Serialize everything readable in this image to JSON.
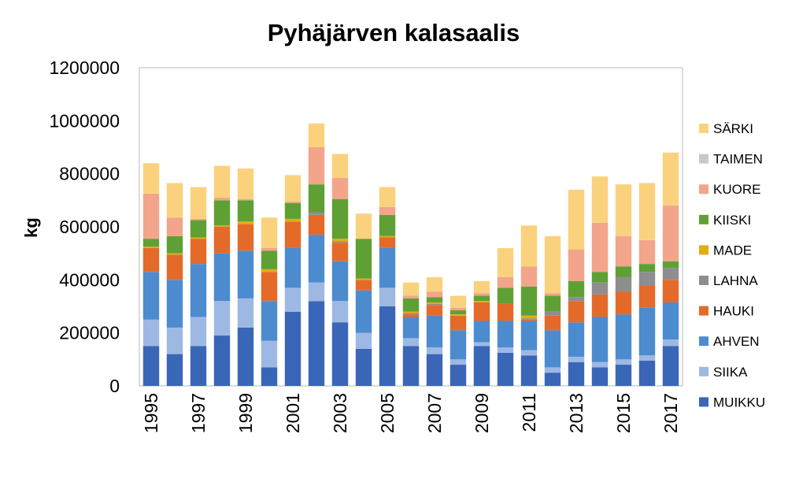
{
  "chart_data": {
    "type": "bar",
    "stacked": true,
    "title": "Pyhäjärven kalasaalis",
    "xlabel": "",
    "ylabel": "kg",
    "ylim": [
      0,
      1200000
    ],
    "yticks": [
      "0",
      "200000",
      "400000",
      "600000",
      "800000",
      "1000000",
      "1200000"
    ],
    "categories": [
      "1995",
      "1996",
      "1997",
      "1998",
      "1999",
      "2000",
      "2001",
      "2002",
      "2003",
      "2004",
      "2005",
      "2006",
      "2007",
      "2008",
      "2009",
      "2010",
      "2011",
      "2012",
      "2013",
      "2014",
      "2015",
      "2016",
      "2017"
    ],
    "xtick_labels": [
      "1995",
      "1997",
      "1999",
      "2001",
      "2003",
      "2005",
      "2007",
      "2009",
      "2011",
      "2013",
      "2015",
      "2017"
    ],
    "grid": false,
    "legend_position": "right",
    "series": [
      {
        "name": "MUIKKU",
        "color": "#3A66B8",
        "values": [
          150000,
          120000,
          150000,
          190000,
          220000,
          70000,
          280000,
          320000,
          240000,
          140000,
          300000,
          150000,
          120000,
          80000,
          150000,
          125000,
          115000,
          50000,
          90000,
          70000,
          80000,
          95000,
          150000
        ]
      },
      {
        "name": "SIIKA",
        "color": "#9DB9E3",
        "values": [
          100000,
          100000,
          110000,
          130000,
          110000,
          100000,
          90000,
          70000,
          80000,
          60000,
          70000,
          30000,
          25000,
          20000,
          15000,
          20000,
          20000,
          20000,
          20000,
          20000,
          20000,
          20000,
          25000
        ]
      },
      {
        "name": "AHVEN",
        "color": "#4D8BCF",
        "values": [
          180000,
          180000,
          200000,
          180000,
          180000,
          150000,
          150000,
          180000,
          150000,
          160000,
          150000,
          80000,
          120000,
          110000,
          80000,
          100000,
          110000,
          140000,
          130000,
          170000,
          170000,
          180000,
          140000
        ]
      },
      {
        "name": "HAUKI",
        "color": "#E46A2A",
        "values": [
          90000,
          95000,
          95000,
          100000,
          100000,
          110000,
          100000,
          75000,
          70000,
          40000,
          40000,
          10000,
          40000,
          55000,
          70000,
          65000,
          5000,
          55000,
          80000,
          85000,
          85000,
          85000,
          85000
        ]
      },
      {
        "name": "LAHNA",
        "color": "#8E8E8E",
        "values": [
          0,
          0,
          0,
          0,
          0,
          0,
          0,
          10000,
          5000,
          0,
          0,
          5000,
          5000,
          0,
          0,
          0,
          5000,
          15000,
          15000,
          45000,
          55000,
          50000,
          45000
        ]
      },
      {
        "name": "MADE",
        "color": "#E5AC10",
        "values": [
          5000,
          5000,
          5000,
          5000,
          10000,
          10000,
          10000,
          0,
          10000,
          5000,
          5000,
          5000,
          5000,
          5000,
          5000,
          0,
          10000,
          0,
          0,
          0,
          0,
          0,
          0
        ]
      },
      {
        "name": "KIISKI",
        "color": "#5FA035",
        "values": [
          30000,
          65000,
          65000,
          95000,
          80000,
          70000,
          60000,
          105000,
          150000,
          150000,
          80000,
          50000,
          20000,
          15000,
          20000,
          60000,
          110000,
          60000,
          60000,
          40000,
          40000,
          30000,
          25000
        ]
      },
      {
        "name": "KUORE",
        "color": "#F2A58A",
        "values": [
          170000,
          70000,
          5000,
          10000,
          5000,
          10000,
          5000,
          140000,
          80000,
          0,
          30000,
          10000,
          20000,
          10000,
          10000,
          40000,
          75000,
          10000,
          120000,
          185000,
          115000,
          90000,
          210000
        ]
      },
      {
        "name": "TAIMEN",
        "color": "#C8C8C8",
        "values": [
          0,
          0,
          0,
          0,
          0,
          0,
          0,
          0,
          0,
          0,
          0,
          0,
          0,
          0,
          0,
          0,
          0,
          0,
          0,
          0,
          0,
          0,
          0
        ]
      },
      {
        "name": "SÄRKI",
        "color": "#FAD27E",
        "values": [
          115000,
          130000,
          120000,
          120000,
          115000,
          115000,
          100000,
          90000,
          90000,
          95000,
          75000,
          50000,
          55000,
          45000,
          45000,
          110000,
          155000,
          215000,
          225000,
          175000,
          195000,
          215000,
          200000
        ]
      }
    ]
  }
}
